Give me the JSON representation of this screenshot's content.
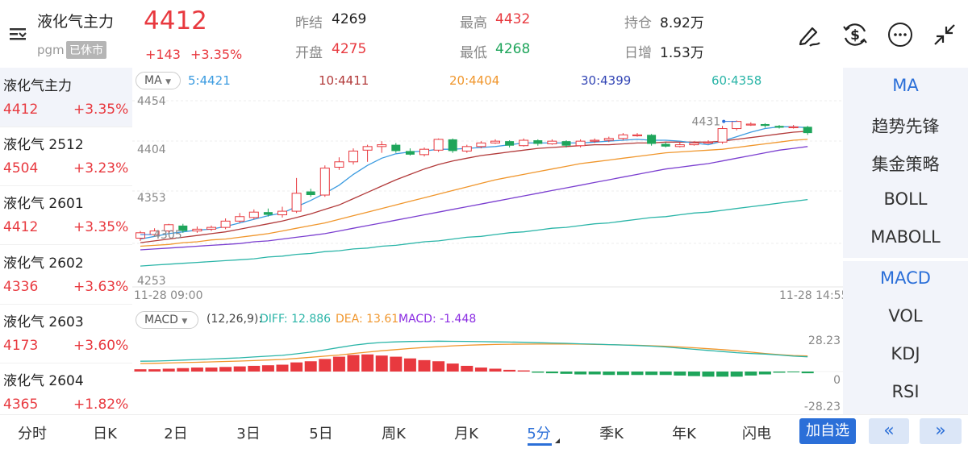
{
  "header": {
    "title": "液化气主力",
    "exchange": "pgm",
    "status_badge": "已休市",
    "price": "4412",
    "change": "+143",
    "change_pct": "+3.35%",
    "stats": {
      "prev_close_label": "昨结",
      "prev_close": "4269",
      "open_label": "开盘",
      "open": "4275",
      "high_label": "最高",
      "high": "4432",
      "low_label": "最低",
      "low": "4268",
      "oi_label": "持仓",
      "oi": "8.92万",
      "oi_change_label": "日增",
      "oi_change": "1.53万"
    },
    "icons": [
      "menu-icon",
      "draw-pen-icon",
      "dollar-exchange-icon",
      "more-icon",
      "shrink-icon"
    ]
  },
  "contracts": [
    {
      "name": "液化气主力",
      "price": "4412",
      "pct": "+3.35%"
    },
    {
      "name": "液化气 2512",
      "price": "4504",
      "pct": "+3.23%"
    },
    {
      "name": "液化气 2601",
      "price": "4412",
      "pct": "+3.35%"
    },
    {
      "name": "液化气 2602",
      "price": "4336",
      "pct": "+3.63%"
    },
    {
      "name": "液化气 2603",
      "price": "4173",
      "pct": "+3.60%"
    },
    {
      "name": "液化气 2604",
      "price": "4365",
      "pct": "+1.82%"
    }
  ],
  "ma_legend": {
    "selector": "MA",
    "ma5": "5:4421",
    "ma10": "10:4411",
    "ma20": "20:4404",
    "ma30": "30:4399",
    "ma60": "60:4358"
  },
  "macd_legend": {
    "selector": "MACD",
    "params": "(12,26,9):",
    "diff": "DIFF: 12.886",
    "dea": "DEA: 13.61",
    "macd": "MACD: -1.448"
  },
  "time_axis": {
    "start": "11-28 09:00",
    "end": "11-28 14:55"
  },
  "macd_axis": {
    "top": "28.23",
    "mid": "0",
    "bottom": "-28.23"
  },
  "indicators_main": [
    "MA",
    "趋势先锋",
    "集金策略",
    "BOLL",
    "MABOLL"
  ],
  "indicators_sub": [
    "MACD",
    "VOL",
    "KDJ",
    "RSI"
  ],
  "bottom_tabs": [
    "分时",
    "日K",
    "2日",
    "3日",
    "5日",
    "周K",
    "月K",
    "5分",
    "季K",
    "年K",
    "闪电"
  ],
  "selected_tab": "5分",
  "add_watch": "加自选",
  "nav_prev": "«",
  "nav_next": "»",
  "colors": {
    "up": "#e8393f",
    "down": "#1ea55b",
    "accent": "#2b6fd8",
    "ma5": "#3b9be0",
    "ma10": "#b23a3a",
    "ma20": "#f0962c",
    "ma30": "#7b3fd0",
    "ma60": "#2bb5a8"
  },
  "chart_data": {
    "type": "candlestick",
    "interval": "5分",
    "ylim": [
      4253,
      4454
    ],
    "y_ticks": [
      "4454",
      "4404",
      "4353",
      "4253"
    ],
    "x_labels": [
      "11-28 09:00",
      "11-28 14:55"
    ],
    "annotations": [
      {
        "label": "4431",
        "value": 4431
      },
      {
        "label": "4305",
        "value": 4305
      }
    ],
    "candles": [
      {
        "o": 4301,
        "c": 4307,
        "h": 4309,
        "l": 4298
      },
      {
        "o": 4305,
        "c": 4309,
        "h": 4312,
        "l": 4303
      },
      {
        "o": 4309,
        "c": 4316,
        "h": 4317,
        "l": 4306
      },
      {
        "o": 4315,
        "c": 4309,
        "h": 4317,
        "l": 4307
      },
      {
        "o": 4309,
        "c": 4311,
        "h": 4314,
        "l": 4307
      },
      {
        "o": 4311,
        "c": 4313,
        "h": 4315,
        "l": 4309
      },
      {
        "o": 4313,
        "c": 4320,
        "h": 4323,
        "l": 4311
      },
      {
        "o": 4320,
        "c": 4325,
        "h": 4329,
        "l": 4318
      },
      {
        "o": 4324,
        "c": 4330,
        "h": 4333,
        "l": 4322
      },
      {
        "o": 4330,
        "c": 4327,
        "h": 4334,
        "l": 4325
      },
      {
        "o": 4327,
        "c": 4331,
        "h": 4336,
        "l": 4324
      },
      {
        "o": 4331,
        "c": 4351,
        "h": 4368,
        "l": 4329
      },
      {
        "o": 4353,
        "c": 4349,
        "h": 4356,
        "l": 4347
      },
      {
        "o": 4349,
        "c": 4379,
        "h": 4382,
        "l": 4347
      },
      {
        "o": 4380,
        "c": 4386,
        "h": 4391,
        "l": 4377
      },
      {
        "o": 4386,
        "c": 4398,
        "h": 4401,
        "l": 4383
      },
      {
        "o": 4399,
        "c": 4403,
        "h": 4405,
        "l": 4386
      },
      {
        "o": 4403,
        "c": 4405,
        "h": 4409,
        "l": 4396
      },
      {
        "o": 4405,
        "c": 4398,
        "h": 4407,
        "l": 4396
      },
      {
        "o": 4398,
        "c": 4394,
        "h": 4401,
        "l": 4393
      },
      {
        "o": 4394,
        "c": 4400,
        "h": 4402,
        "l": 4392
      },
      {
        "o": 4399,
        "c": 4411,
        "h": 4412,
        "l": 4397
      },
      {
        "o": 4411,
        "c": 4398,
        "h": 4412,
        "l": 4396
      },
      {
        "o": 4398,
        "c": 4403,
        "h": 4405,
        "l": 4396
      },
      {
        "o": 4403,
        "c": 4407,
        "h": 4409,
        "l": 4401
      },
      {
        "o": 4407,
        "c": 4409,
        "h": 4411,
        "l": 4406
      },
      {
        "o": 4409,
        "c": 4404,
        "h": 4410,
        "l": 4402
      },
      {
        "o": 4404,
        "c": 4410,
        "h": 4412,
        "l": 4403
      },
      {
        "o": 4410,
        "c": 4406,
        "h": 4411,
        "l": 4404
      },
      {
        "o": 4406,
        "c": 4409,
        "h": 4411,
        "l": 4405
      },
      {
        "o": 4409,
        "c": 4404,
        "h": 4410,
        "l": 4402
      },
      {
        "o": 4404,
        "c": 4409,
        "h": 4411,
        "l": 4402
      },
      {
        "o": 4409,
        "c": 4410,
        "h": 4412,
        "l": 4407
      },
      {
        "o": 4410,
        "c": 4412,
        "h": 4414,
        "l": 4408
      },
      {
        "o": 4412,
        "c": 4416,
        "h": 4418,
        "l": 4410
      },
      {
        "o": 4416,
        "c": 4416,
        "h": 4418,
        "l": 4414
      },
      {
        "o": 4416,
        "c": 4406,
        "h": 4417,
        "l": 4404
      },
      {
        "o": 4406,
        "c": 4403,
        "h": 4408,
        "l": 4402
      },
      {
        "o": 4403,
        "c": 4405,
        "h": 4408,
        "l": 4402
      },
      {
        "o": 4405,
        "c": 4407,
        "h": 4409,
        "l": 4404
      },
      {
        "o": 4407,
        "c": 4408,
        "h": 4410,
        "l": 4406
      },
      {
        "o": 4408,
        "c": 4423,
        "h": 4426,
        "l": 4406
      },
      {
        "o": 4423,
        "c": 4431,
        "h": 4432,
        "l": 4421
      },
      {
        "o": 4428,
        "c": 4428,
        "h": 4430,
        "l": 4426
      },
      {
        "o": 4428,
        "c": 4426,
        "h": 4429,
        "l": 4424
      },
      {
        "o": 4426,
        "c": 4424,
        "h": 4427,
        "l": 4423
      },
      {
        "o": 4424,
        "c": 4425,
        "h": 4427,
        "l": 4423
      },
      {
        "o": 4425,
        "c": 4418,
        "h": 4426,
        "l": 4416
      }
    ],
    "ma_lines": {
      "ma5": [
        4300,
        4303,
        4306,
        4308,
        4310,
        4311,
        4314,
        4318,
        4322,
        4326,
        4329,
        4336,
        4343,
        4351,
        4360,
        4372,
        4382,
        4390,
        4395,
        4397,
        4398,
        4400,
        4400,
        4401,
        4402,
        4403,
        4405,
        4407,
        4407,
        4407,
        4407,
        4407,
        4408,
        4409,
        4410,
        4411,
        4410,
        4410,
        4409,
        4407,
        4405,
        4409,
        4414,
        4419,
        4423,
        4425,
        4425,
        4424
      ],
      "ma10": [
        4296,
        4298,
        4300,
        4302,
        4304,
        4306,
        4308,
        4311,
        4314,
        4317,
        4320,
        4324,
        4328,
        4333,
        4338,
        4345,
        4352,
        4359,
        4366,
        4372,
        4378,
        4383,
        4387,
        4390,
        4393,
        4395,
        4397,
        4399,
        4401,
        4402,
        4403,
        4404,
        4405,
        4405,
        4406,
        4407,
        4407,
        4408,
        4408,
        4408,
        4408,
        4409,
        4411,
        4413,
        4415,
        4417,
        4419,
        4420
      ],
      "ma20": [
        4292,
        4293,
        4294,
        4296,
        4297,
        4299,
        4300,
        4302,
        4304,
        4306,
        4309,
        4312,
        4315,
        4318,
        4322,
        4326,
        4330,
        4334,
        4338,
        4342,
        4346,
        4350,
        4354,
        4358,
        4362,
        4366,
        4369,
        4372,
        4375,
        4378,
        4381,
        4384,
        4386,
        4388,
        4390,
        4392,
        4394,
        4396,
        4397,
        4398,
        4399,
        4400,
        4402,
        4404,
        4406,
        4408,
        4410,
        4411
      ],
      "ma30": [
        4288,
        4289,
        4290,
        4291,
        4292,
        4293,
        4294,
        4295,
        4297,
        4298,
        4300,
        4302,
        4304,
        4306,
        4309,
        4312,
        4315,
        4318,
        4321,
        4324,
        4327,
        4330,
        4333,
        4336,
        4339,
        4342,
        4345,
        4348,
        4351,
        4354,
        4357,
        4360,
        4363,
        4366,
        4369,
        4372,
        4375,
        4378,
        4380,
        4382,
        4384,
        4387,
        4390,
        4393,
        4396,
        4399,
        4401,
        4403
      ],
      "ma60": [
        4270,
        4271,
        4272,
        4273,
        4274,
        4275,
        4276,
        4277,
        4278,
        4280,
        4281,
        4283,
        4284,
        4286,
        4287,
        4289,
        4290,
        4292,
        4293,
        4295,
        4297,
        4298,
        4300,
        4302,
        4303,
        4305,
        4307,
        4308,
        4310,
        4312,
        4313,
        4315,
        4317,
        4318,
        4320,
        4322,
        4324,
        4325,
        4327,
        4329,
        4330,
        4332,
        4334,
        4336,
        4338,
        4340,
        4342,
        4344
      ]
    },
    "macd": {
      "ylim": [
        -28.23,
        28.23
      ],
      "hist": [
        2,
        2,
        2.5,
        3,
        3.5,
        3.5,
        4,
        4.5,
        5,
        5.5,
        6,
        8,
        9,
        11,
        13,
        14.5,
        15,
        14,
        13,
        11.5,
        10,
        9,
        7,
        5,
        3.5,
        2.5,
        1.5,
        1,
        -1,
        -1.5,
        -2,
        -2.5,
        -2.5,
        -3,
        -3,
        -3,
        -3,
        -3,
        -3.5,
        -4,
        -4.5,
        -4.5,
        -4.5,
        -3.5,
        -2.5,
        -1,
        -0.5,
        -1.5
      ],
      "diff": [
        9,
        9.2,
        9.5,
        10,
        10.5,
        11,
        11.5,
        12,
        12.8,
        13.5,
        14.2,
        15.5,
        17,
        19,
        21,
        23,
        24.5,
        25.5,
        26,
        26.3,
        26.5,
        26.6,
        26.5,
        26.4,
        26.2,
        26,
        25.8,
        25.6,
        25.3,
        25,
        24.7,
        24.3,
        24,
        23.6,
        23.2,
        22.8,
        22.2,
        21.5,
        20.5,
        19.5,
        18.5,
        17.5,
        16.5,
        15.8,
        15.3,
        14.5,
        13.5,
        12.886
      ],
      "dea": [
        7,
        7.2,
        7.5,
        7.8,
        8.1,
        8.5,
        8.8,
        9.2,
        9.6,
        10.1,
        10.6,
        11.5,
        12.5,
        13.5,
        14.5,
        15.8,
        17,
        18.2,
        19.2,
        20.2,
        21,
        21.8,
        22.5,
        23,
        23.4,
        23.7,
        23.9,
        24,
        24.1,
        24.1,
        24.1,
        24,
        23.8,
        23.6,
        23.3,
        23,
        22.6,
        22.1,
        21.5,
        20.8,
        20,
        19.2,
        18.2,
        17,
        15.8,
        14.8,
        14,
        13.61
      ]
    }
  }
}
